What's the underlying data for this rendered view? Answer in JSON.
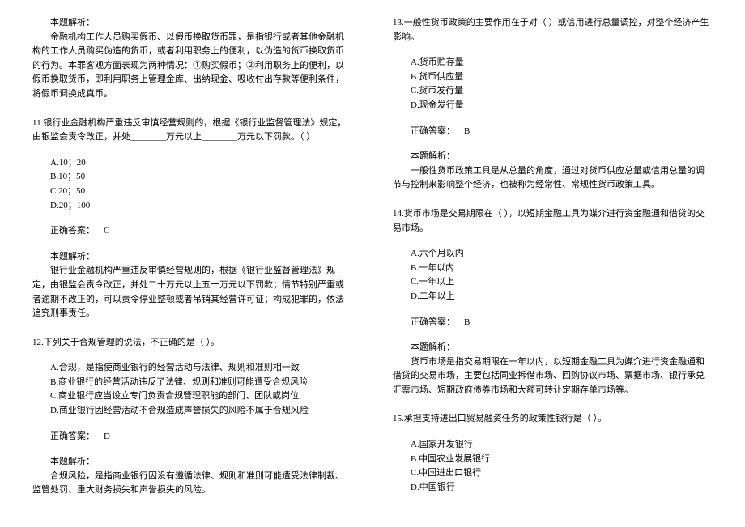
{
  "q10_explanation": {
    "header": "本题解析：",
    "body": "金融机构工作人员购买假币、以假币换取货币罪，是指银行或者其他金融机构的工作人员购买伪造的货币，或者利用职务上的便利，以伪造的货币换取货币的行为。本罪客观方面表现为两种情况：①购买假币；②利用职务上的便利，以假币换取货币，即利用职务上管理金库、出纳现金、吸收付出存款等便利条件，将假币调换成真币。"
  },
  "q11": {
    "title": "11.银行业金融机构严重违反审慎经营规则的，根据《银行业监督管理法》规定，由银监会责令改正，并处________万元以上________万元以下罚款。（ ）",
    "options": [
      "A.10；20",
      "B.10；50",
      "C.20；50",
      "D.20；100"
    ],
    "answer_label": "正确答案：",
    "answer_letter": "C",
    "explanation_header": "本题解析：",
    "explanation_body": "银行业金融机构严重违反审慎经营规则的，根据《银行业监督管理法》规定，由银监会责令改正，并处二十万元以上五十万元以下罚款；情节特别严重或者逾期不改正的，可以责令停业整顿或者吊销其经营许可证；构成犯罪的，依法追究刑事责任。"
  },
  "q12": {
    "title": "12.下列关于合规管理的说法，不正确的是（ ）。",
    "options": [
      "A.合规，是指使商业银行的经营活动与法律、规则和准则相一致",
      "B.商业银行的经营活动违反了法律、规则和准则可能遭受合规风险",
      "C.商业银行应当设立专门负责合规管理职能的部门、团队或岗位",
      "D.商业银行因经营活动不合规造成声誉损失的风险不属于合规风险"
    ],
    "answer_label": "正确答案：",
    "answer_letter": "D",
    "explanation_header": "本题解析：",
    "explanation_body": "合规风险，是指商业银行因没有遵循法律、规则和准则可能遭受法律制裁、监管处罚、重大财务损失和声誉损失的风险。"
  },
  "q13": {
    "title": "13.一般性货币政策的主要作用在于对（ ）或信用进行总量调控，对整个经济产生影响。",
    "options": [
      "A.货币贮存量",
      "B.货币供应量",
      "C.货币发行量",
      "D.现金发行量"
    ],
    "answer_label": "正确答案：",
    "answer_letter": "B",
    "explanation_header": "本题解析：",
    "explanation_body": "一般性货币政策工具是从总量的角度，通过对货币供应总量或信用总量的调节与控制来影响整个经济，也被称为经常性、常规性货币政策工具。"
  },
  "q14": {
    "title": "14.货币市场是交易期限在（ ），以短期金融工具为媒介进行资金融通和借贷的交易市场。",
    "options": [
      "A.六个月以内",
      "B.一年以内",
      "C.一年以上",
      "D.二年以上"
    ],
    "answer_label": "正确答案：",
    "answer_letter": "B",
    "explanation_header": "本题解析：",
    "explanation_body": "货币市场是指交易期限在一年以内，以短期金融工具为媒介进行资金融通和借贷的交易市场，主要包括同业拆借市场、回购协议市场、票据市场、银行承兑汇票市场、短期政府债券市场和大额可转让定期存单市场等。"
  },
  "q15": {
    "title": "15.承担支持进出口贸易融资任务的政策性银行是（ ）。",
    "options": [
      "A.国家开发银行",
      "B.中国农业发展银行",
      "C.中国进出口银行",
      "D.中国银行"
    ]
  }
}
